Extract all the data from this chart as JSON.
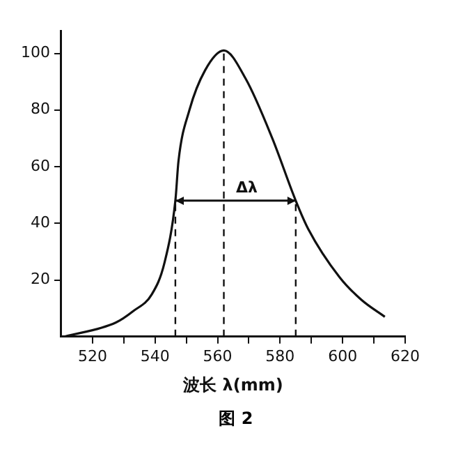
{
  "chart_data": {
    "type": "line",
    "xlabel": "波长 λ(mm)",
    "x": [
      511,
      527.5,
      533,
      539,
      543,
      546.5,
      547.5,
      551,
      556,
      562,
      569,
      577.5,
      585,
      589,
      599,
      606,
      613.5
    ],
    "series": [
      {
        "color": "#111111",
        "values": [
          0,
          5,
          9,
          15,
          26,
          48,
          62,
          80,
          94,
          101,
          91,
          70,
          48,
          38,
          21,
          13,
          7
        ]
      }
    ],
    "xlim": [
      510,
      620
    ],
    "xticks": [
      520,
      {
        "value": 530,
        "label": null
      },
      540,
      {
        "value": 550,
        "label": null
      },
      560,
      {
        "value": 570,
        "label": null
      },
      580,
      {
        "value": 590,
        "label": null
      },
      600,
      {
        "value": 610,
        "label": null
      },
      620
    ],
    "ylim": [
      0,
      108
    ],
    "yticks": [
      20,
      40,
      60,
      80,
      100
    ],
    "ref_lines": [
      {
        "axis": "x",
        "value": 546.5,
        "line_style": "dashed"
      },
      {
        "axis": "x",
        "value": 562,
        "line_style": "dashed"
      },
      {
        "axis": "x",
        "value": 585,
        "line_style": "dashed"
      },
      {
        "axis": "y",
        "value": 48,
        "label": "Δλ",
        "line_style": "solid"
      }
    ],
    "annotations": [
      "图 2"
    ],
    "grid": false,
    "legend": false,
    "marker": "none",
    "line_style": "solid"
  }
}
